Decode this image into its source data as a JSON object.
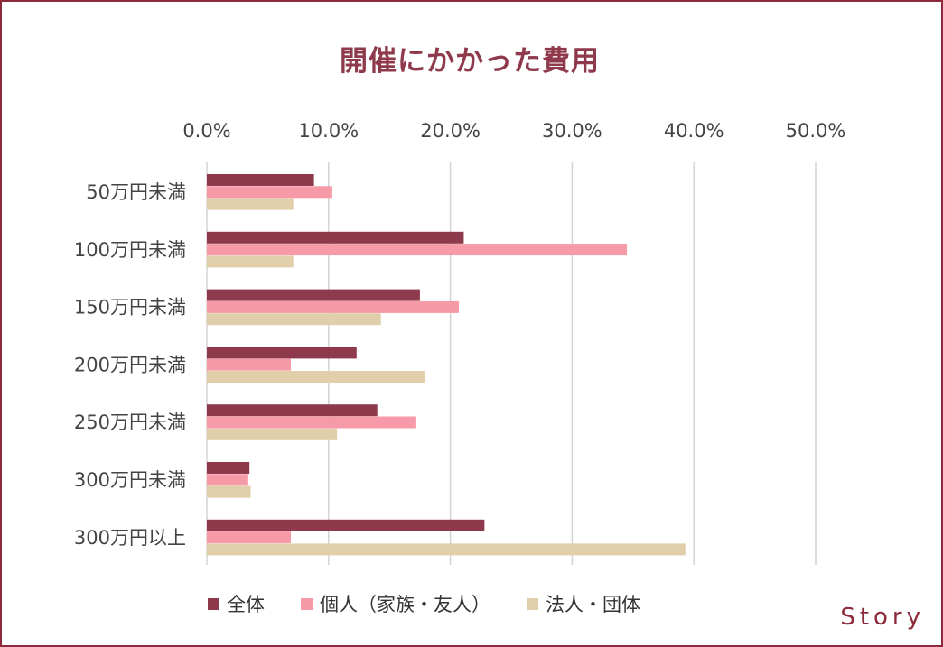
{
  "brand": "Story",
  "chart_data": {
    "type": "bar",
    "orientation": "horizontal",
    "title": "開催にかかった費用",
    "xlim": [
      0,
      50
    ],
    "x_ticks": [
      "0.0%",
      "10.0%",
      "20.0%",
      "30.0%",
      "40.0%",
      "50.0%"
    ],
    "x_tick_values": [
      0,
      10,
      20,
      30,
      40,
      50
    ],
    "x_axis_position": "top",
    "grid": true,
    "legend_position": "bottom",
    "categories": [
      "50万円未満",
      "100万円未満",
      "150万円未満",
      "200万円未満",
      "250万円未満",
      "300万円未満",
      "300万円以上"
    ],
    "series": [
      {
        "name": "全体",
        "color": "#8f3a4c",
        "values": [
          8.8,
          21.1,
          17.5,
          12.3,
          14.0,
          3.5,
          22.8
        ]
      },
      {
        "name": "個人（家族・友人）",
        "color": "#f79aa8",
        "values": [
          10.3,
          34.5,
          20.7,
          6.9,
          17.2,
          3.4,
          6.9
        ]
      },
      {
        "name": "法人・団体",
        "color": "#e0cfaa",
        "values": [
          7.1,
          7.1,
          14.3,
          17.9,
          10.7,
          3.6,
          39.3
        ]
      }
    ]
  }
}
